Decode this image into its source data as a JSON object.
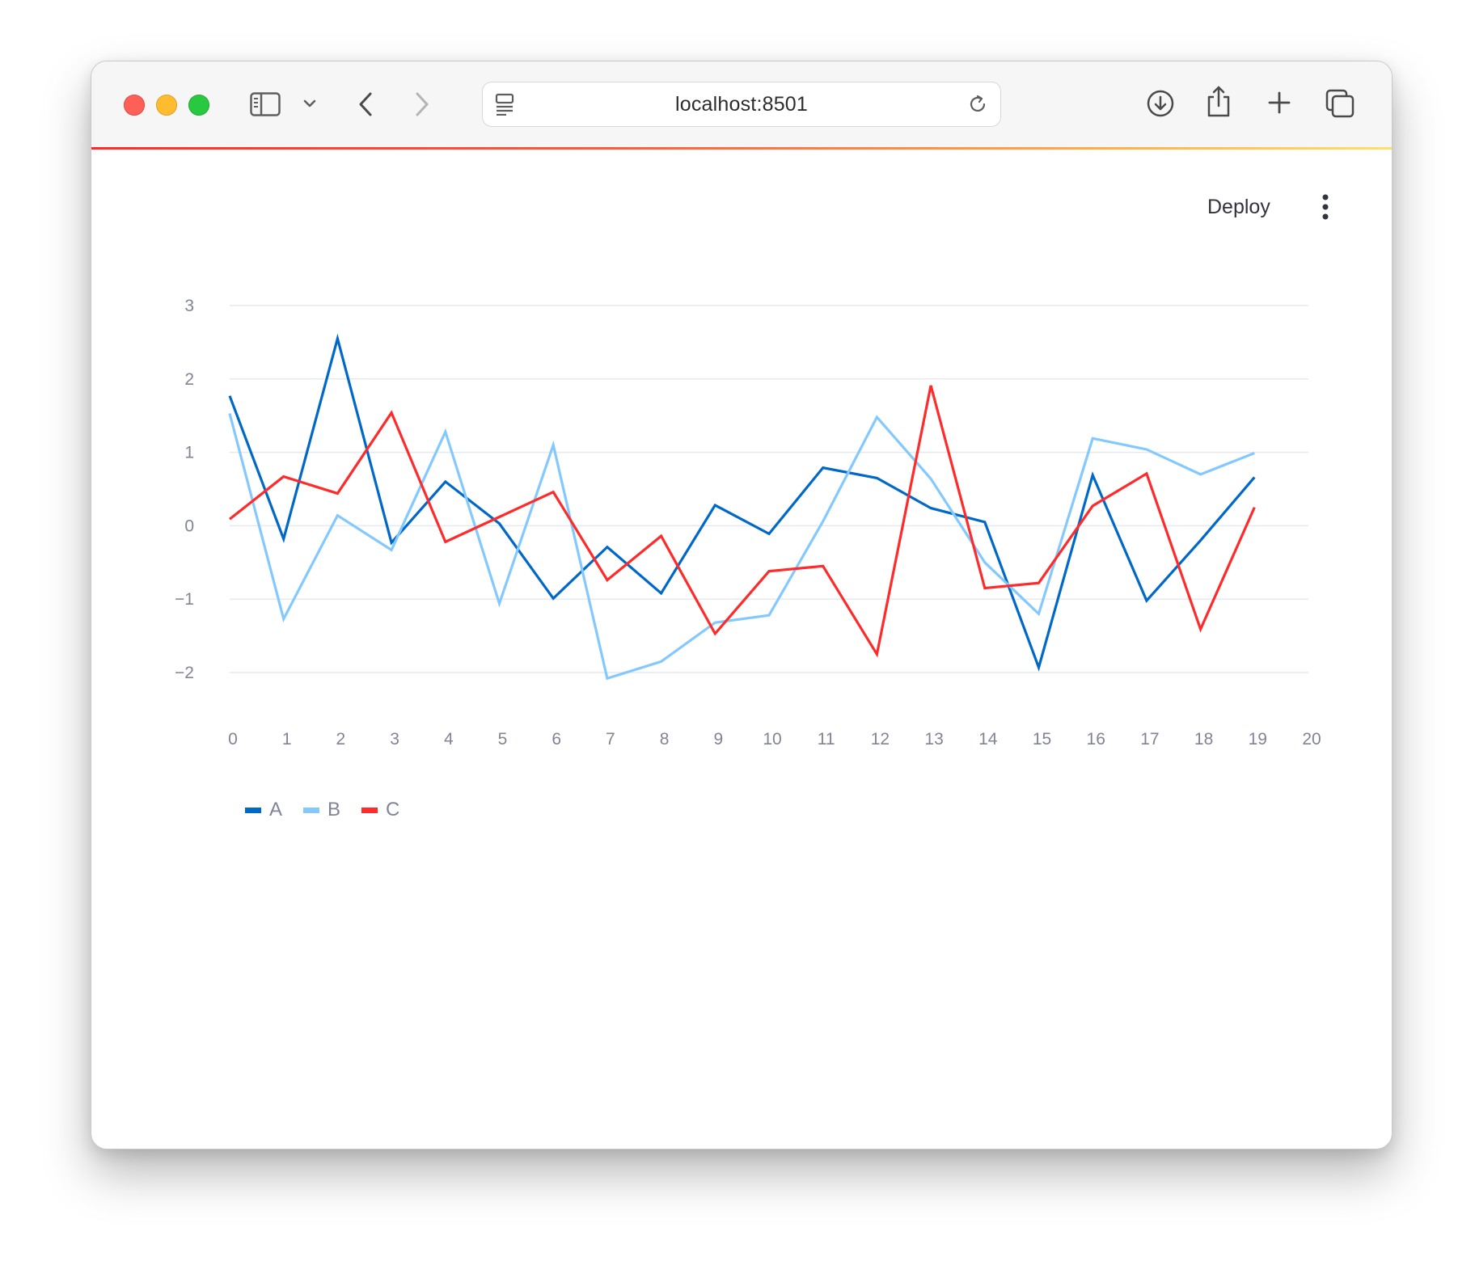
{
  "browser": {
    "url": "localhost:8501",
    "icons": [
      "sidebar-icon",
      "chevron-down-icon",
      "back-icon",
      "forward-icon",
      "reader-icon",
      "reload-icon",
      "download-icon",
      "share-icon",
      "new-tab-icon",
      "tabs-overview-icon"
    ]
  },
  "app": {
    "deploy_label": "Deploy",
    "menu_icon": "kebab-menu-icon",
    "accent_gradient": [
      "#ff2b2b",
      "#ffe066"
    ]
  },
  "chart_data": {
    "type": "line",
    "x": [
      0,
      1,
      2,
      3,
      4,
      5,
      6,
      7,
      8,
      9,
      10,
      11,
      12,
      13,
      14,
      15,
      16,
      17,
      18,
      19
    ],
    "xlim": [
      0,
      20
    ],
    "xticks": [
      "0",
      "1",
      "2",
      "3",
      "4",
      "5",
      "6",
      "7",
      "8",
      "9",
      "10",
      "11",
      "12",
      "13",
      "14",
      "15",
      "16",
      "17",
      "18",
      "19",
      "20"
    ],
    "ylim": [
      -2.5,
      3.1
    ],
    "yticks": [
      {
        "value": 3,
        "label": "3"
      },
      {
        "value": 2,
        "label": "2"
      },
      {
        "value": 1,
        "label": "1"
      },
      {
        "value": 0,
        "label": "0"
      },
      {
        "value": -1,
        "label": "−1"
      },
      {
        "value": -2,
        "label": "−2"
      }
    ],
    "grid": true,
    "legend_position": "bottom-left",
    "series": [
      {
        "name": "A",
        "color": "#0068c9",
        "values": [
          1.77,
          -0.18,
          2.55,
          -0.23,
          0.6,
          0.03,
          -0.99,
          -0.29,
          -0.92,
          0.28,
          -0.11,
          0.79,
          0.65,
          0.24,
          0.05,
          -1.93,
          0.69,
          -1.02,
          -0.2,
          0.66
        ]
      },
      {
        "name": "B",
        "color": "#83c9ff",
        "values": [
          1.53,
          -1.27,
          0.14,
          -0.33,
          1.28,
          -1.06,
          1.1,
          -2.08,
          -1.85,
          -1.32,
          -1.22,
          0.06,
          1.48,
          0.64,
          -0.5,
          -1.2,
          1.19,
          1.04,
          0.7,
          0.99
        ]
      },
      {
        "name": "C",
        "color": "#ff2b2b",
        "values": [
          0.09,
          0.67,
          0.44,
          1.54,
          -0.22,
          0.12,
          0.46,
          -0.74,
          -0.14,
          -1.47,
          -0.62,
          -0.55,
          -1.75,
          1.91,
          -0.85,
          -0.78,
          0.27,
          0.71,
          -1.41,
          0.25
        ]
      }
    ]
  }
}
